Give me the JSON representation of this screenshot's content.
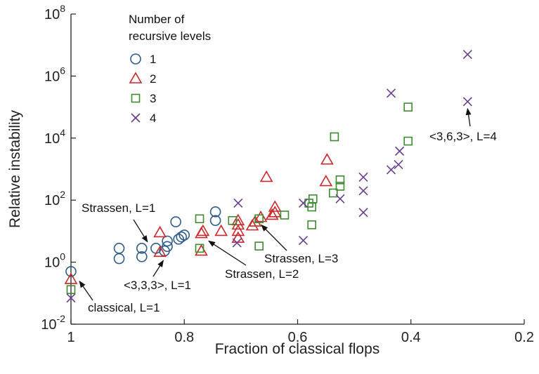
{
  "chart_data": {
    "type": "scatter",
    "xlabel": "Fraction of classical flops",
    "ylabel": "Relative instability",
    "xlim": [
      1.0,
      0.2
    ],
    "x_reversed": true,
    "ylim_log10": [
      -2,
      8
    ],
    "y_scale": "log",
    "x_ticks": [
      {
        "value": 1.0,
        "label": "1"
      },
      {
        "value": 0.8,
        "label": "0.8"
      },
      {
        "value": 0.6,
        "label": "0.6"
      },
      {
        "value": 0.4,
        "label": "0.4"
      },
      {
        "value": 0.2,
        "label": "0.2"
      }
    ],
    "y_ticks": [
      {
        "exp": -2,
        "base": "10",
        "sup": "-2"
      },
      {
        "exp": 0,
        "base": "10",
        "sup": "0"
      },
      {
        "exp": 2,
        "base": "10",
        "sup": "2"
      },
      {
        "exp": 4,
        "base": "10",
        "sup": "4"
      },
      {
        "exp": 6,
        "base": "10",
        "sup": "6"
      },
      {
        "exp": 8,
        "base": "10",
        "sup": "8"
      }
    ],
    "legend": {
      "title_lines": [
        "Number of",
        "recursive levels"
      ],
      "placement": "top-left"
    },
    "series": [
      {
        "name": "1",
        "marker": "circle",
        "color": "#2f5c8a",
        "points": [
          {
            "x": 1.0,
            "y": 0.5
          },
          {
            "x": 0.915,
            "y": 1.3
          },
          {
            "x": 0.915,
            "y": 2.8
          },
          {
            "x": 0.875,
            "y": 1.5
          },
          {
            "x": 0.875,
            "y": 2.8
          },
          {
            "x": 0.85,
            "y": 2.8
          },
          {
            "x": 0.835,
            "y": 2.3
          },
          {
            "x": 0.83,
            "y": 3.2
          },
          {
            "x": 0.83,
            "y": 4.8
          },
          {
            "x": 0.815,
            "y": 20
          },
          {
            "x": 0.81,
            "y": 5.5
          },
          {
            "x": 0.805,
            "y": 6.5
          },
          {
            "x": 0.8,
            "y": 7.5
          },
          {
            "x": 0.745,
            "y": 22
          },
          {
            "x": 0.745,
            "y": 42
          }
        ]
      },
      {
        "name": "2",
        "marker": "triangle",
        "color": "#c8282a",
        "points": [
          {
            "x": 1.0,
            "y": 0.28
          },
          {
            "x": 0.843,
            "y": 2.1
          },
          {
            "x": 0.843,
            "y": 9
          },
          {
            "x": 0.77,
            "y": 2.3
          },
          {
            "x": 0.77,
            "y": 8.5
          },
          {
            "x": 0.767,
            "y": 10
          },
          {
            "x": 0.735,
            "y": 10
          },
          {
            "x": 0.705,
            "y": 6
          },
          {
            "x": 0.705,
            "y": 10
          },
          {
            "x": 0.705,
            "y": 16
          },
          {
            "x": 0.705,
            "y": 22
          },
          {
            "x": 0.68,
            "y": 15
          },
          {
            "x": 0.675,
            "y": 20
          },
          {
            "x": 0.665,
            "y": 28
          },
          {
            "x": 0.655,
            "y": 550
          },
          {
            "x": 0.645,
            "y": 33
          },
          {
            "x": 0.64,
            "y": 40
          },
          {
            "x": 0.64,
            "y": 60
          },
          {
            "x": 0.55,
            "y": 400
          },
          {
            "x": 0.548,
            "y": 2000
          }
        ]
      },
      {
        "name": "3",
        "marker": "square",
        "color": "#3d8a2f",
        "points": [
          {
            "x": 1.0,
            "y": 0.13
          },
          {
            "x": 0.773,
            "y": 2.8
          },
          {
            "x": 0.773,
            "y": 25
          },
          {
            "x": 0.715,
            "y": 22
          },
          {
            "x": 0.668,
            "y": 3.3
          },
          {
            "x": 0.668,
            "y": 25
          },
          {
            "x": 0.623,
            "y": 33
          },
          {
            "x": 0.58,
            "y": 80
          },
          {
            "x": 0.575,
            "y": 60
          },
          {
            "x": 0.575,
            "y": 16
          },
          {
            "x": 0.573,
            "y": 110
          },
          {
            "x": 0.537,
            "y": 170
          },
          {
            "x": 0.535,
            "y": 11000
          },
          {
            "x": 0.525,
            "y": 280
          },
          {
            "x": 0.525,
            "y": 450
          },
          {
            "x": 0.405,
            "y": 100000
          },
          {
            "x": 0.405,
            "y": 8000
          }
        ]
      },
      {
        "name": "4",
        "marker": "cross",
        "color": "#6a3d8f",
        "points": [
          {
            "x": 1.0,
            "y": 0.07
          },
          {
            "x": 0.707,
            "y": 4.2
          },
          {
            "x": 0.705,
            "y": 80
          },
          {
            "x": 0.59,
            "y": 80
          },
          {
            "x": 0.59,
            "y": 5
          },
          {
            "x": 0.525,
            "y": 110
          },
          {
            "x": 0.484,
            "y": 40
          },
          {
            "x": 0.484,
            "y": 200
          },
          {
            "x": 0.484,
            "y": 550
          },
          {
            "x": 0.435,
            "y": 280000
          },
          {
            "x": 0.435,
            "y": 950
          },
          {
            "x": 0.422,
            "y": 1400
          },
          {
            "x": 0.42,
            "y": 3800
          },
          {
            "x": 0.3,
            "y": 5000000
          },
          {
            "x": 0.3,
            "y": 150000
          }
        ]
      }
    ],
    "annotations": [
      {
        "text": "Strassen, L=1",
        "target_x": 0.865,
        "target_y": 2.8,
        "dir": "down"
      },
      {
        "text": "<3,3,3>, L=1",
        "target_x": 0.837,
        "target_y": 1.9,
        "dir": "up"
      },
      {
        "text": "classical, L=1",
        "target_x": 0.985,
        "target_y": 0.3,
        "dir": "up-left"
      },
      {
        "text": "Strassen, L=2",
        "target_x": 0.757,
        "target_y": 9,
        "dir": "up-left"
      },
      {
        "text": "Strassen, L=3",
        "target_x": 0.664,
        "target_y": 24,
        "dir": "up-left"
      },
      {
        "text": "<3,6,3>, L=4",
        "target_x": 0.3,
        "target_y": 150000,
        "dir": "up"
      }
    ]
  }
}
